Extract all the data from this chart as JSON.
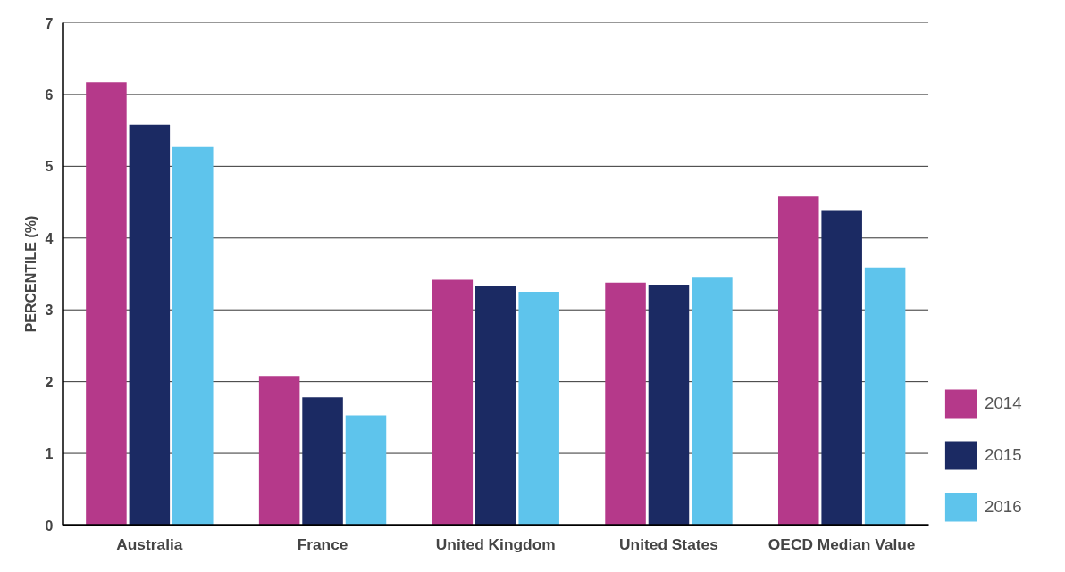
{
  "chart_data": {
    "type": "bar",
    "ylabel": "PERCENTILE (%)",
    "categories": [
      "Australia",
      "France",
      "United Kingdom",
      "United States",
      "OECD Median Value"
    ],
    "series": [
      {
        "name": "2014",
        "color": "#b5398a",
        "values": [
          6.17,
          2.08,
          3.42,
          3.38,
          4.58
        ]
      },
      {
        "name": "2015",
        "color": "#1b2a63",
        "values": [
          5.58,
          1.78,
          3.33,
          3.35,
          4.39
        ]
      },
      {
        "name": "2016",
        "color": "#5ec4ec",
        "values": [
          5.27,
          1.53,
          3.25,
          3.46,
          3.59
        ]
      }
    ],
    "ylim": [
      0,
      7
    ],
    "yticks": [
      0,
      1,
      2,
      3,
      4,
      5,
      6,
      7
    ],
    "grid": "y",
    "legend": "bottom right"
  }
}
